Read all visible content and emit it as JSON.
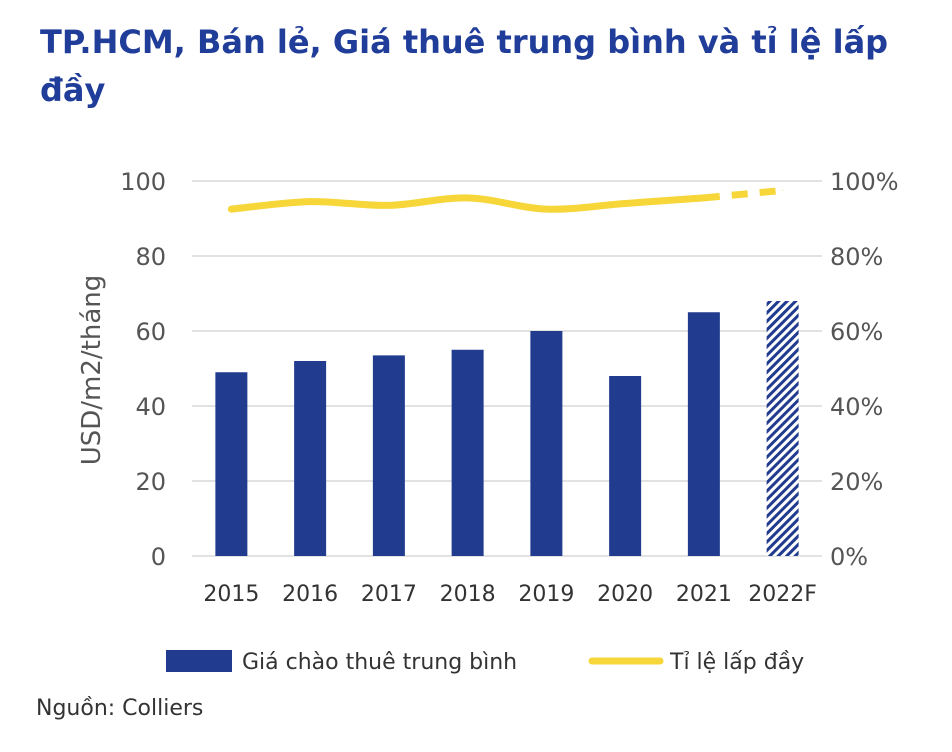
{
  "title": "TP.HCM, Bán lẻ, Giá thuê trung bình và tỉ lệ lấp đầy",
  "source": "Nguồn: Colliers",
  "colors": {
    "title": "#1f3d99",
    "bar": "#213c8f",
    "line": "#f7d63a",
    "grid": "#d9d9d9",
    "axis_text": "#555555"
  },
  "chart_data": {
    "type": "bar",
    "categories": [
      "2015",
      "2016",
      "2017",
      "2018",
      "2019",
      "2020",
      "2021",
      "2022F"
    ],
    "series": [
      {
        "name": "Giá chào thuê trung bình",
        "type": "bar",
        "axis": "left",
        "values": [
          49,
          52,
          53.5,
          55,
          60,
          48,
          65,
          68
        ],
        "forecast_index": 7
      },
      {
        "name": "Tỉ lệ lấp đầy",
        "type": "line",
        "axis": "right",
        "values": [
          92.5,
          94.5,
          93.5,
          95.5,
          92.5,
          94,
          95.5,
          97.5
        ],
        "forecast_index": 7
      }
    ],
    "ylabel": "USD/m2/tháng",
    "ylim": [
      0,
      100
    ],
    "yticks": [
      0,
      20,
      40,
      60,
      80,
      100
    ],
    "y2lim": [
      0,
      100
    ],
    "y2ticks": [
      "0%",
      "20%",
      "40%",
      "60%",
      "80%",
      "100%"
    ],
    "grid": true,
    "legend_position": "bottom"
  }
}
